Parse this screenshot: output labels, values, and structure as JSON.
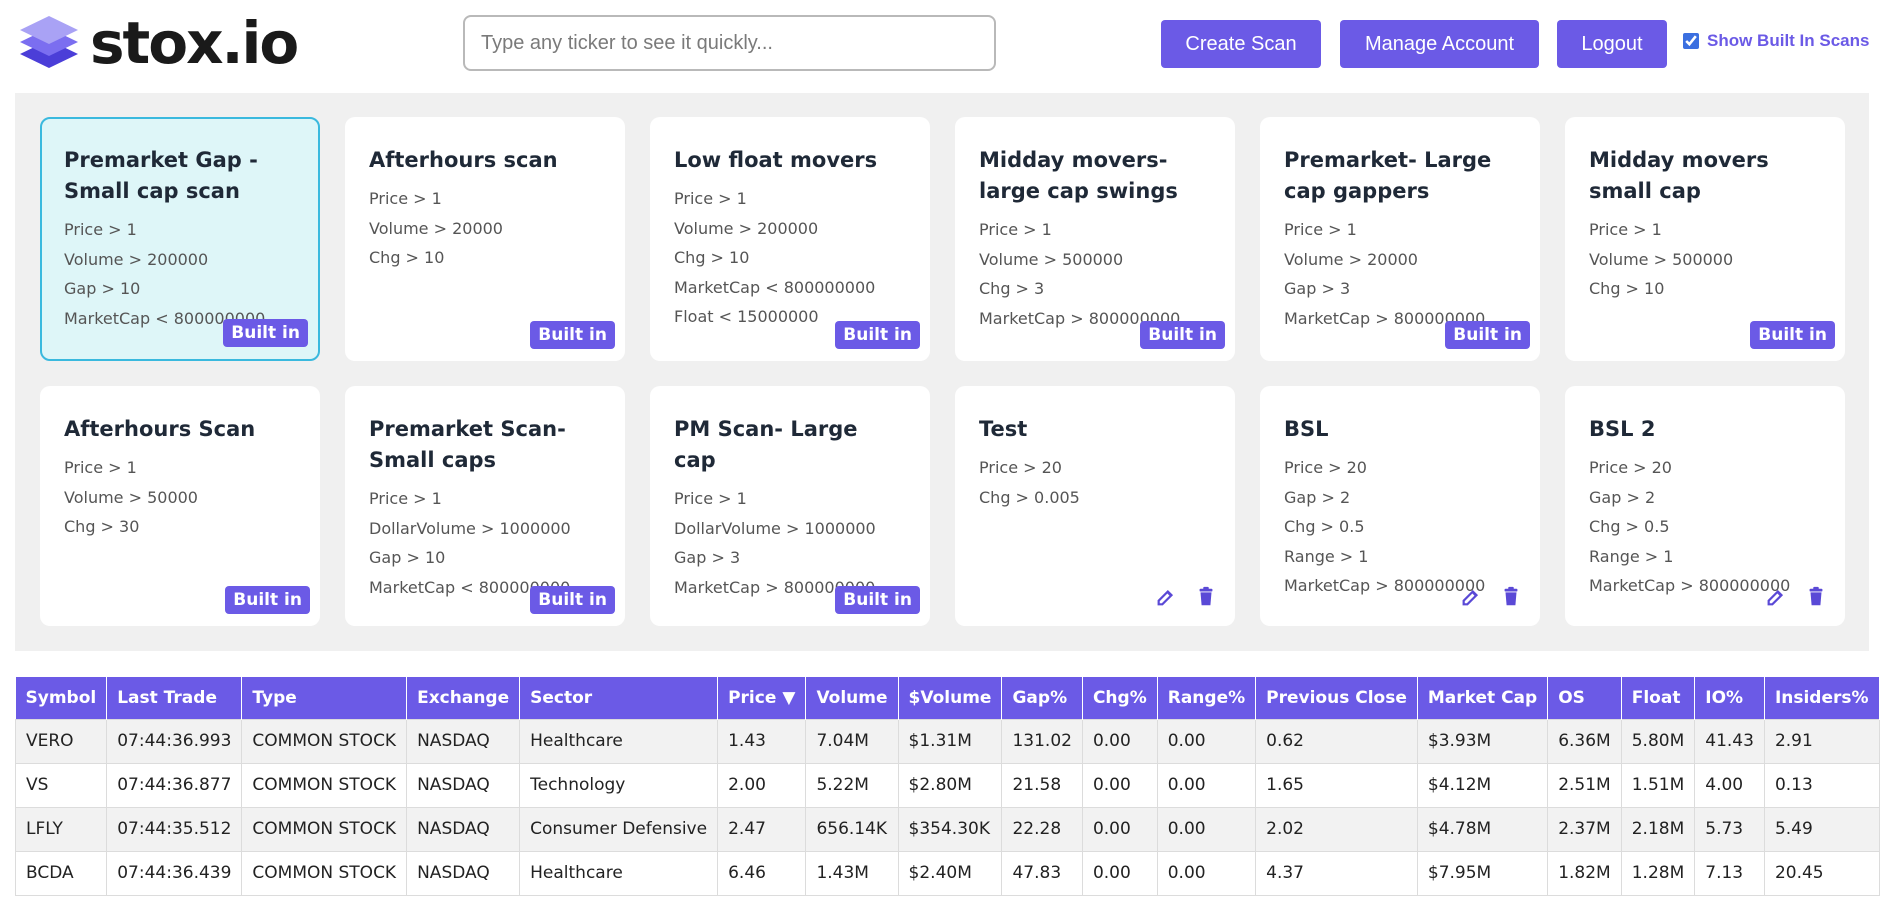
{
  "app": {
    "logo_text": "stox.io"
  },
  "header": {
    "search_placeholder": "Type any ticker to see it quickly...",
    "create_scan": "Create Scan",
    "manage_account": "Manage Account",
    "logout": "Logout",
    "show_builtin_label": "Show Built In Scans",
    "show_builtin_checked": true
  },
  "colors": {
    "accent": "#6b5ae6",
    "selected_bg": "#def6f8",
    "selected_border": "#3ab9de"
  },
  "scans": [
    {
      "title": "Premarket Gap - Small cap scan",
      "rules": [
        "Price > 1",
        "Volume > 200000",
        "Gap > 10",
        "MarketCap < 800000000"
      ],
      "badge": "Built in",
      "selected": true
    },
    {
      "title": "Afterhours scan",
      "rules": [
        "Price > 1",
        "Volume > 20000",
        "Chg > 10"
      ],
      "badge": "Built in"
    },
    {
      "title": "Low float movers",
      "rules": [
        "Price > 1",
        "Volume > 200000",
        "Chg > 10",
        "MarketCap < 800000000",
        "Float < 15000000"
      ],
      "badge": "Built in"
    },
    {
      "title": "Midday movers-large cap swings",
      "rules": [
        "Price > 1",
        "Volume > 500000",
        "Chg > 3",
        "MarketCap > 800000000"
      ],
      "badge": "Built in"
    },
    {
      "title": "Premarket- Large cap gappers",
      "rules": [
        "Price > 1",
        "Volume > 20000",
        "Gap > 3",
        "MarketCap > 800000000"
      ],
      "badge": "Built in"
    },
    {
      "title": "Midday movers small cap",
      "rules": [
        "Price > 1",
        "Volume > 500000",
        "Chg > 10"
      ],
      "badge": "Built in"
    },
    {
      "title": "Afterhours Scan",
      "rules": [
        "Price > 1",
        "Volume > 50000",
        "Chg > 30"
      ],
      "badge": "Built in"
    },
    {
      "title": "Premarket Scan- Small caps",
      "rules": [
        "Price > 1",
        "DollarVolume > 1000000",
        "Gap > 10",
        "MarketCap < 800000000"
      ],
      "badge": "Built in"
    },
    {
      "title": "PM Scan- Large cap",
      "rules": [
        "Price > 1",
        "DollarVolume > 1000000",
        "Gap > 3",
        "MarketCap > 800000000"
      ],
      "badge": "Built in"
    },
    {
      "title": "Test",
      "rules": [
        "Price > 20",
        "Chg > 0.005"
      ],
      "badge": "",
      "actions": [
        "edit-icon",
        "trash-icon"
      ]
    },
    {
      "title": "BSL",
      "rules": [
        "Price > 20",
        "Gap > 2",
        "Chg > 0.5",
        "Range > 1",
        "MarketCap > 800000000"
      ],
      "badge": "",
      "actions": [
        "edit-icon",
        "trash-icon"
      ]
    },
    {
      "title": "BSL 2",
      "rules": [
        "Price > 20",
        "Gap > 2",
        "Chg > 0.5",
        "Range > 1",
        "MarketCap > 800000000"
      ],
      "badge": "",
      "actions": [
        "edit-icon",
        "trash-icon"
      ]
    }
  ],
  "table": {
    "sort_indicator": "▼",
    "columns": [
      "Symbol",
      "Last Trade",
      "Type",
      "Exchange",
      "Sector",
      "Price",
      "Volume",
      "$Volume",
      "Gap%",
      "Chg%",
      "Range%",
      "Previous Close",
      "Market Cap",
      "OS",
      "Float",
      "IO%",
      "Insiders%"
    ],
    "sorted_column": "Price",
    "rows": [
      [
        "VERO",
        "07:44:36.993",
        "COMMON STOCK",
        "NASDAQ",
        "Healthcare",
        "1.43",
        "7.04M",
        "$1.31M",
        "131.02",
        "0.00",
        "0.00",
        "0.62",
        "$3.93M",
        "6.36M",
        "5.80M",
        "41.43",
        "2.91"
      ],
      [
        "VS",
        "07:44:36.877",
        "COMMON STOCK",
        "NASDAQ",
        "Technology",
        "2.00",
        "5.22M",
        "$2.80M",
        "21.58",
        "0.00",
        "0.00",
        "1.65",
        "$4.12M",
        "2.51M",
        "1.51M",
        "4.00",
        "0.13"
      ],
      [
        "LFLY",
        "07:44:35.512",
        "COMMON STOCK",
        "NASDAQ",
        "Consumer Defensive",
        "2.47",
        "656.14K",
        "$354.30K",
        "22.28",
        "0.00",
        "0.00",
        "2.02",
        "$4.78M",
        "2.37M",
        "2.18M",
        "5.73",
        "5.49"
      ],
      [
        "BCDA",
        "07:44:36.439",
        "COMMON STOCK",
        "NASDAQ",
        "Healthcare",
        "6.46",
        "1.43M",
        "$2.40M",
        "47.83",
        "0.00",
        "0.00",
        "4.37",
        "$7.95M",
        "1.82M",
        "1.28M",
        "7.13",
        "20.45"
      ]
    ]
  }
}
